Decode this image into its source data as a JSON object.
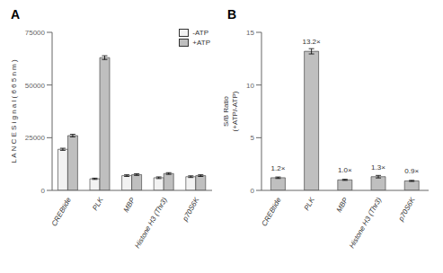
{
  "chart_data": [
    {
      "type": "bar",
      "title": "A",
      "ylabel": "L A N C E  S i g n a l ( 6 6 5  n m )",
      "categories": [
        "CREBtide",
        "PLK",
        "MBP",
        "Histone H3 (Thr3)",
        "p70S6K"
      ],
      "series": [
        {
          "name": "-ATP",
          "color": "#f2f2f2",
          "values": [
            19500,
            5500,
            7000,
            6000,
            6500
          ],
          "errors": [
            500,
            300,
            400,
            400,
            400
          ]
        },
        {
          "name": "+ATP",
          "color": "#bfbfbf",
          "values": [
            26000,
            63000,
            7500,
            8000,
            7000
          ],
          "errors": [
            600,
            900,
            400,
            400,
            400
          ]
        }
      ],
      "ylim": [
        0,
        75000
      ],
      "yticks": [
        0,
        25000,
        50000,
        75000
      ],
      "grid": false,
      "legend": "upper right"
    },
    {
      "type": "bar",
      "title": "B",
      "ylabel": "S/B Ratio\n(+ATP/-ATP)",
      "categories": [
        "CREBtide",
        "PLK",
        "MBP",
        "Histone H3 (Thr3)",
        "p70S6K"
      ],
      "values": [
        1.2,
        13.2,
        1.0,
        1.3,
        0.9
      ],
      "errors": [
        0.07,
        0.25,
        0.05,
        0.12,
        0.05
      ],
      "value_labels": [
        "1.2×",
        "13.2×",
        "1.0×",
        "1.3×",
        "0.9×"
      ],
      "data_labels": true,
      "color": "#bfbfbf",
      "ylim": [
        0,
        15
      ],
      "yticks": [
        0,
        5,
        10,
        15
      ],
      "grid": false
    }
  ]
}
